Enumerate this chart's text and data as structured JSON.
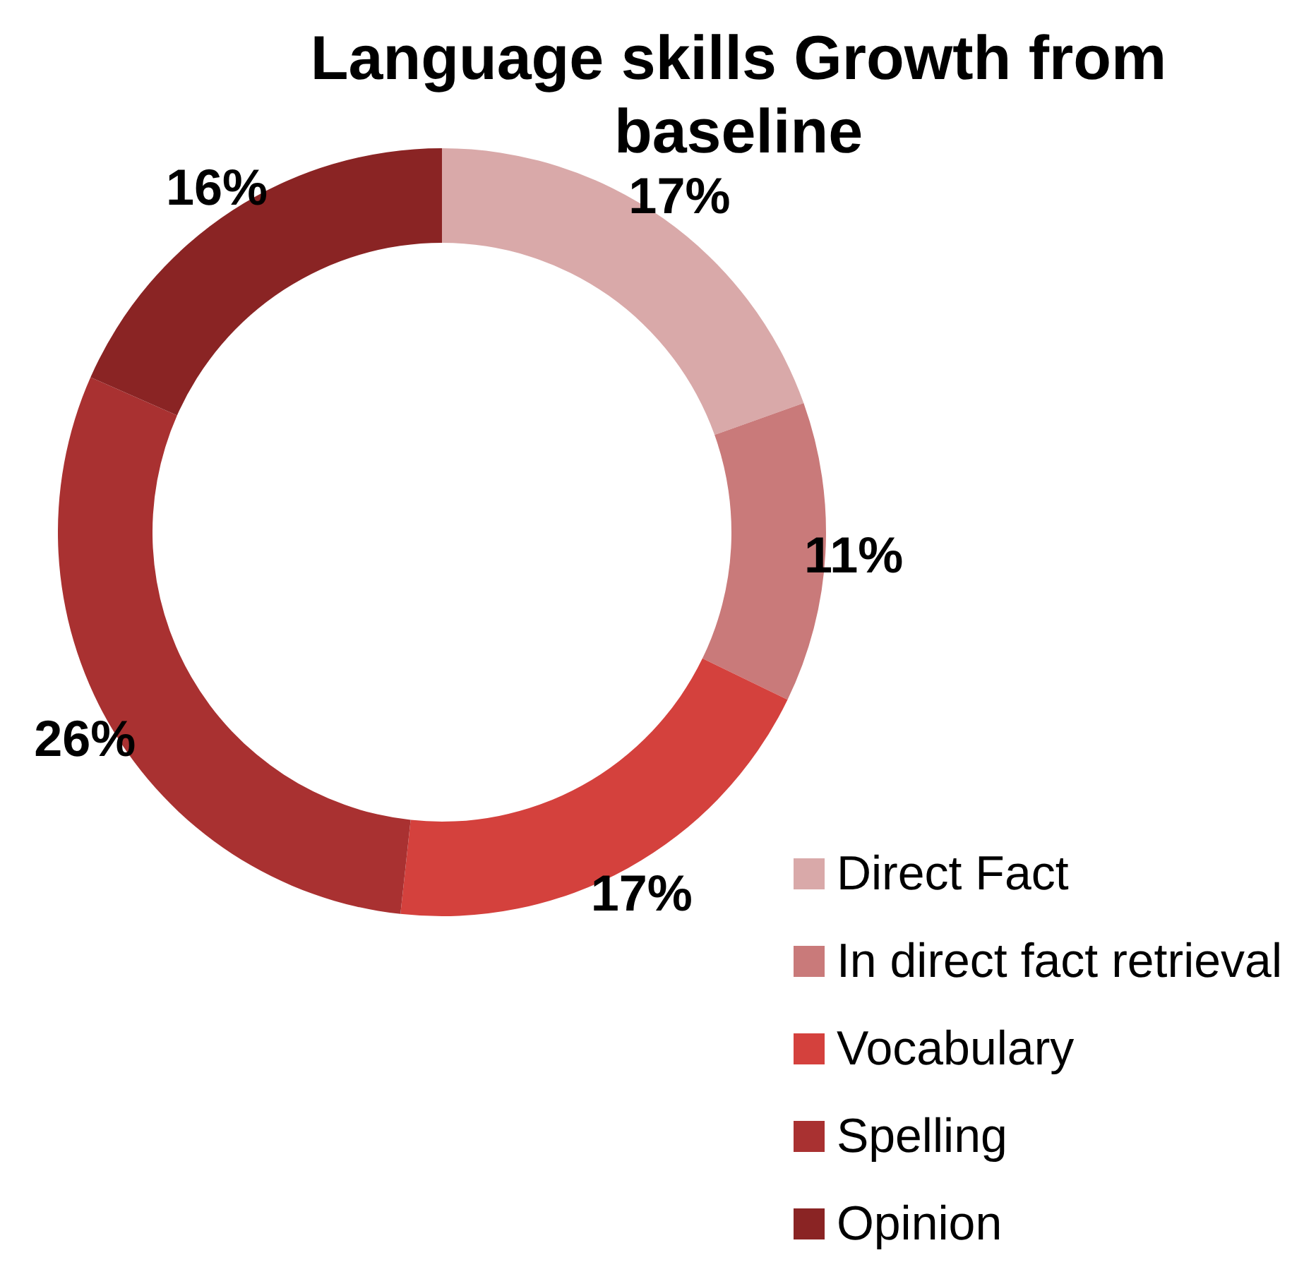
{
  "chart_data": {
    "type": "donut",
    "title": "Language skills Growth from baseline",
    "categories": [
      "Direct Fact",
      "In direct fact retrieval",
      "Vocabulary",
      "Spelling",
      "Opinion"
    ],
    "values": [
      17,
      11,
      17,
      26,
      16
    ],
    "value_labels": [
      "17%",
      "11%",
      "17%",
      "26%",
      "16%"
    ],
    "colors": [
      "#d9a9a9",
      "#c97a7a",
      "#d4413d",
      "#a93131",
      "#8a2424"
    ],
    "legend": "bottom right"
  }
}
